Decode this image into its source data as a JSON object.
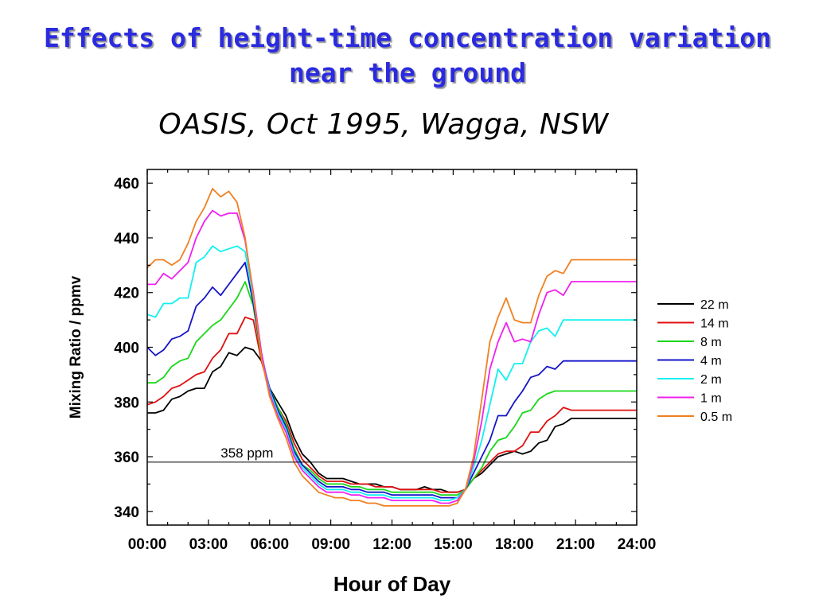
{
  "slide": {
    "title": "Effects of height-time concentration variation\nnear the ground",
    "subtitle": "OASIS, Oct 1995, Wagga, NSW"
  },
  "chart_data": {
    "type": "line",
    "title": "",
    "xlabel": "Hour of Day",
    "ylabel": "Mixing Ratio / ppmv",
    "xlim": [
      0,
      24
    ],
    "ylim": [
      335,
      465
    ],
    "x_ticks": [
      "00:00",
      "03:00",
      "06:00",
      "09:00",
      "12:00",
      "15:00",
      "18:00",
      "21:00",
      "24:00"
    ],
    "y_ticks": [
      340,
      360,
      380,
      400,
      420,
      440,
      460
    ],
    "grid": false,
    "legend_position": "right",
    "reference_line": {
      "y": 358,
      "label": "358 ppm"
    },
    "x": [
      0,
      0.4,
      0.8,
      1.2,
      1.6,
      2.0,
      2.4,
      2.8,
      3.2,
      3.6,
      4.0,
      4.4,
      4.8,
      5.2,
      5.6,
      6.0,
      6.4,
      6.8,
      7.2,
      7.6,
      8.0,
      8.4,
      8.8,
      9.2,
      9.6,
      10.0,
      10.4,
      10.8,
      11.2,
      11.6,
      12.0,
      12.4,
      12.8,
      13.2,
      13.6,
      14.0,
      14.4,
      14.8,
      15.2,
      15.6,
      16.0,
      16.4,
      16.8,
      17.2,
      17.6,
      18.0,
      18.4,
      18.8,
      19.2,
      19.6,
      20.0,
      20.4,
      20.8,
      21.2,
      21.6,
      22.0,
      22.4,
      22.8,
      23.2,
      23.6,
      24.0
    ],
    "series": [
      {
        "name": "22 m",
        "color": "#000000",
        "values": [
          376,
          376,
          377,
          381,
          382,
          384,
          385,
          385,
          391,
          393,
          398,
          397,
          400,
          399,
          395,
          385,
          380,
          375,
          367,
          361,
          358,
          354,
          352,
          352,
          352,
          351,
          350,
          350,
          350,
          349,
          349,
          348,
          348,
          348,
          349,
          348,
          348,
          347,
          347,
          348,
          352,
          354,
          357,
          360,
          361,
          362,
          361,
          362,
          365,
          366,
          371,
          372,
          374,
          374,
          374,
          374,
          374,
          374,
          374,
          374,
          374
        ]
      },
      {
        "name": "14 m",
        "color": "#e01010",
        "values": [
          379,
          380,
          382,
          385,
          386,
          388,
          390,
          391,
          396,
          399,
          405,
          405,
          411,
          410,
          395,
          384,
          378,
          373,
          365,
          359,
          356,
          353,
          351,
          351,
          351,
          350,
          350,
          350,
          349,
          349,
          349,
          348,
          348,
          348,
          348,
          348,
          347,
          347,
          347,
          348,
          352,
          355,
          358,
          361,
          362,
          362,
          364,
          369,
          369,
          373,
          375,
          378,
          377,
          377,
          377,
          377,
          377,
          377,
          377,
          377,
          377
        ]
      },
      {
        "name": "8 m",
        "color": "#18d818",
        "values": [
          387,
          387,
          389,
          393,
          395,
          396,
          402,
          405,
          408,
          410,
          414,
          418,
          424,
          415,
          396,
          385,
          378,
          372,
          363,
          357,
          355,
          352,
          350,
          350,
          350,
          349,
          349,
          348,
          348,
          348,
          347,
          347,
          347,
          347,
          347,
          347,
          346,
          346,
          346,
          348,
          352,
          356,
          362,
          366,
          367,
          371,
          376,
          377,
          381,
          383,
          384,
          384,
          384,
          384,
          384,
          384,
          384,
          384,
          384,
          384,
          384
        ]
      },
      {
        "name": "4 m",
        "color": "#1414c8",
        "values": [
          400,
          397,
          399,
          403,
          404,
          406,
          415,
          418,
          422,
          419,
          423,
          427,
          431,
          416,
          397,
          385,
          377,
          371,
          362,
          357,
          354,
          351,
          349,
          349,
          349,
          348,
          348,
          347,
          347,
          347,
          346,
          346,
          346,
          346,
          346,
          346,
          345,
          345,
          345,
          348,
          354,
          360,
          366,
          375,
          375,
          380,
          384,
          389,
          390,
          393,
          392,
          395,
          395,
          395,
          395,
          395,
          395,
          395,
          395,
          395,
          395
        ]
      },
      {
        "name": "2 m",
        "color": "#10f0f0",
        "values": [
          412,
          411,
          416,
          416,
          418,
          418,
          431,
          433,
          437,
          435,
          436,
          437,
          435,
          418,
          398,
          384,
          376,
          370,
          361,
          356,
          353,
          350,
          348,
          348,
          348,
          347,
          347,
          346,
          346,
          346,
          345,
          345,
          345,
          345,
          345,
          345,
          344,
          344,
          345,
          348,
          356,
          366,
          379,
          392,
          388,
          394,
          394,
          402,
          406,
          407,
          404,
          410,
          410,
          410,
          410,
          410,
          410,
          410,
          410,
          410,
          410
        ]
      },
      {
        "name": "1 m",
        "color": "#f020f0",
        "values": [
          423,
          423,
          427,
          425,
          428,
          431,
          440,
          446,
          450,
          448,
          449,
          449,
          439,
          420,
          398,
          383,
          375,
          369,
          360,
          355,
          352,
          349,
          347,
          347,
          347,
          346,
          346,
          345,
          345,
          345,
          344,
          344,
          344,
          344,
          344,
          344,
          343,
          343,
          344,
          348,
          358,
          373,
          392,
          402,
          409,
          402,
          403,
          402,
          412,
          420,
          421,
          419,
          424,
          424,
          424,
          424,
          424,
          424,
          424,
          424,
          424
        ]
      },
      {
        "name": "0.5 m",
        "color": "#f08020",
        "values": [
          429,
          432,
          432,
          430,
          432,
          438,
          446,
          451,
          458,
          455,
          457,
          453,
          440,
          419,
          396,
          382,
          374,
          367,
          358,
          353,
          350,
          347,
          346,
          345,
          345,
          344,
          344,
          343,
          343,
          342,
          342,
          342,
          342,
          342,
          342,
          342,
          342,
          342,
          343,
          348,
          360,
          381,
          402,
          411,
          418,
          410,
          409,
          409,
          419,
          426,
          428,
          427,
          432,
          432,
          432,
          432,
          432,
          432,
          432,
          432,
          432
        ]
      }
    ]
  }
}
